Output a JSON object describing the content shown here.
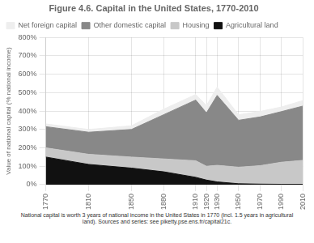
{
  "chart_data": {
    "type": "area",
    "title": "Figure 4.6. Capital in the United States, 1770-2010",
    "y_label": "Value of national capital (% national income)",
    "caption": "National capital is worth 3 years of national income in the United States in 1770 (incl. 1.5 years in agricultural\nland). Sources and series: see piketty.pse.ens.fr/capital21c.",
    "x": [
      1770,
      1810,
      1850,
      1880,
      1910,
      1920,
      1930,
      1950,
      1970,
      1990,
      2010
    ],
    "series": [
      {
        "name": "Agricultural land",
        "color": "#111111",
        "values": [
          150,
          110,
          90,
          70,
          40,
          25,
          15,
          5,
          3,
          2,
          2
        ]
      },
      {
        "name": "Housing",
        "color": "#c8c8c8",
        "values": [
          50,
          55,
          60,
          70,
          90,
          75,
          90,
          90,
          100,
          120,
          130
        ]
      },
      {
        "name": "Other domestic capital",
        "color": "#888888",
        "values": [
          115,
          120,
          150,
          240,
          330,
          290,
          380,
          255,
          265,
          275,
          295
        ]
      },
      {
        "name": "Net foreign capital",
        "color": "#eeeeee",
        "values": [
          15,
          15,
          20,
          30,
          30,
          40,
          45,
          30,
          30,
          25,
          30
        ]
      }
    ],
    "xlim": [
      1770,
      2010
    ],
    "xticks": [
      1770,
      1810,
      1850,
      1880,
      1910,
      1920,
      1930,
      1950,
      1970,
      1990,
      2010
    ],
    "ylim": [
      0,
      800
    ],
    "yticks": [
      {
        "value": 0,
        "label": "0%"
      },
      {
        "value": 100,
        "label": "100%"
      },
      {
        "value": 200,
        "label": "200%"
      },
      {
        "value": 300,
        "label": "300%"
      },
      {
        "value": 400,
        "label": "400%"
      },
      {
        "value": 500,
        "label": "500%"
      },
      {
        "value": 600,
        "label": "600%"
      },
      {
        "value": 700,
        "label": "700%"
      },
      {
        "value": 800,
        "label": "800%"
      }
    ],
    "stacked": true,
    "grid": true,
    "legend": "upper left"
  }
}
